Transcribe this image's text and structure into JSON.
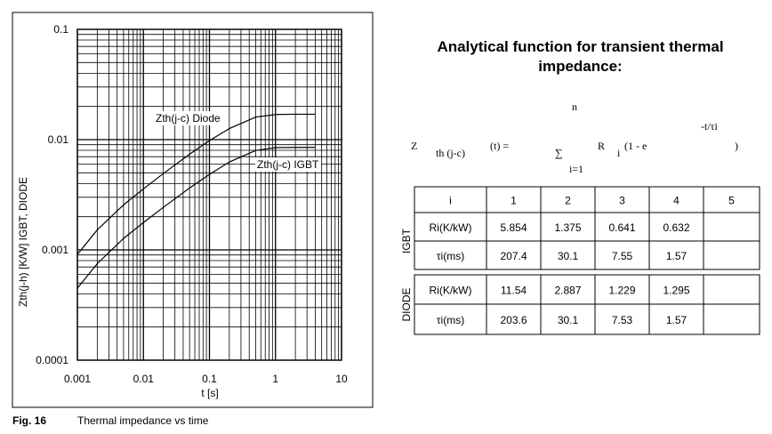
{
  "chart_data": {
    "type": "line",
    "x_label": "t  [s]",
    "y_label": "Zth(j-h) [K/W]   IGBT, DIODE",
    "xlim": [
      0.001,
      10
    ],
    "ylim": [
      0.0001,
      0.1
    ],
    "xticks": [
      0.001,
      0.01,
      0.1,
      1,
      10
    ],
    "yticks": [
      0.0001,
      0.001,
      0.01,
      0.1
    ],
    "log_x": true,
    "log_y": true,
    "grid": true,
    "x": [
      0.001,
      0.002,
      0.005,
      0.01,
      0.02,
      0.05,
      0.1,
      0.2,
      0.5,
      1,
      2,
      4
    ],
    "series": [
      {
        "name": "Zth(j-c) Diode",
        "color": "#000000",
        "values": [
          0.00091,
          0.00152,
          0.00256,
          0.00357,
          0.00492,
          0.00738,
          0.00979,
          0.0126,
          0.016,
          0.0169,
          0.017,
          0.017
        ]
      },
      {
        "name": "Zth(j-c) IGBT",
        "color": "#000000",
        "values": [
          0.00045,
          0.00075,
          0.00127,
          0.00177,
          0.00243,
          0.00364,
          0.00484,
          0.00627,
          0.00798,
          0.00846,
          0.0085,
          0.0085
        ]
      }
    ]
  },
  "caption": {
    "number": "Fig. 16",
    "text": "Thermal impedance vs time"
  },
  "formula": {
    "title": "Analytical function for transient thermal impedance:",
    "z": "Z",
    "z_sub": "th (j-c)",
    "arg": "(t) =",
    "upper": "n",
    "lower": "i=1",
    "r": "R",
    "r_sub": "i",
    "open": "(1 - e",
    "exponent": "-t/τi",
    "close": ")"
  },
  "table": {
    "header": [
      "i",
      1,
      2,
      3,
      4,
      5
    ],
    "groups": [
      {
        "name": "IGBT",
        "rows": [
          [
            "Ri(K/kW)",
            5.854,
            1.375,
            0.641,
            0.632,
            null
          ],
          [
            "τi(ms)",
            207.4,
            30.1,
            7.55,
            1.57,
            null
          ]
        ]
      },
      {
        "name": "DIODE",
        "rows": [
          [
            "Ri(K/kW)",
            11.54,
            2.887,
            1.229,
            1.295,
            null
          ],
          [
            "τi(ms)",
            203.6,
            30.1,
            7.53,
            1.57,
            null
          ]
        ]
      }
    ]
  }
}
